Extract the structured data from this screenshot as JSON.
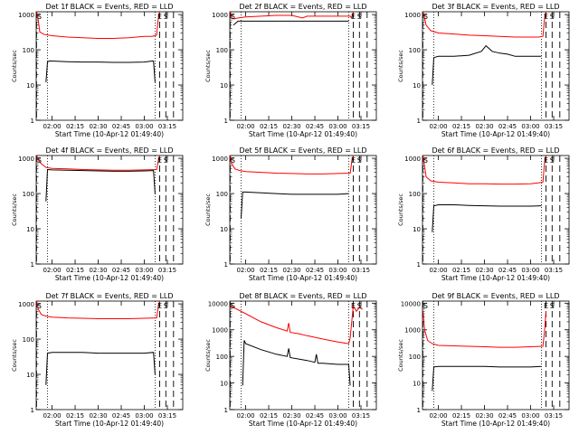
{
  "chart_data": [
    {
      "type": "line",
      "title": "Det 1f BLACK = Events, RED = LLD",
      "ylabel": "Counts/sec",
      "xlabel": "Start Time (10-Apr-12 01:49:40)",
      "xticks": [
        "02:00",
        "02:15",
        "02:30",
        "02:45",
        "03:00",
        "03:15"
      ],
      "yticks": [
        "1",
        "10",
        "100",
        "1000"
      ],
      "ylim": [
        1,
        1200
      ],
      "yscale": "log",
      "markers": [
        "S",
        "E",
        "S"
      ],
      "series": [
        {
          "color": "#ff0000",
          "x": [
            "01:50",
            "01:51",
            "01:52",
            "01:55",
            "02:00",
            "02:10",
            "02:20",
            "02:30",
            "02:40",
            "02:50",
            "03:00",
            "03:05",
            "03:08",
            "03:09",
            "03:10"
          ],
          "y": [
            1200,
            700,
            320,
            270,
            250,
            230,
            220,
            210,
            210,
            220,
            240,
            240,
            260,
            700,
            1200
          ]
        },
        {
          "color": "#000000",
          "x": [
            "01:56",
            "01:57",
            "01:58",
            "02:00",
            "02:10",
            "02:20",
            "02:30",
            "02:40",
            "02:50",
            "03:00",
            "03:05",
            "03:06",
            "03:07"
          ],
          "y": [
            12,
            45,
            48,
            48,
            46,
            45,
            45,
            44,
            44,
            45,
            48,
            48,
            12
          ]
        }
      ]
    },
    {
      "type": "line",
      "title": "Det 2f BLACK = Events, RED = LLD",
      "ylabel": "Counts/sec",
      "xlabel": "Start Time (10-Apr-12 01:49:40)",
      "xticks": [
        "02:00",
        "02:15",
        "02:30",
        "02:45",
        "03:00",
        "03:15"
      ],
      "yticks": [
        "1",
        "10",
        "100",
        "1000"
      ],
      "ylim": [
        1,
        1200
      ],
      "yscale": "log",
      "markers": [
        "S",
        "E",
        "S"
      ],
      "series": [
        {
          "color": "#ff0000",
          "x": [
            "01:50",
            "01:51",
            "01:52",
            "01:55",
            "02:00",
            "02:10",
            "02:20",
            "02:30",
            "02:37",
            "02:40",
            "02:50",
            "03:00",
            "03:08",
            "03:09",
            "03:10"
          ],
          "y": [
            1200,
            800,
            750,
            800,
            850,
            900,
            950,
            950,
            800,
            900,
            900,
            900,
            900,
            800,
            1200
          ]
        },
        {
          "color": "#000000",
          "x": [
            "01:52",
            "01:55",
            "02:00",
            "02:10",
            "02:20",
            "02:30",
            "02:40",
            "02:50",
            "03:00",
            "03:07"
          ],
          "y": [
            500,
            650,
            650,
            650,
            650,
            650,
            650,
            650,
            650,
            650
          ]
        }
      ]
    },
    {
      "type": "line",
      "title": "Det 3f BLACK = Events, RED = LLD",
      "ylabel": "Counts/sec",
      "xlabel": "Start Time (10-Apr-12 01:49:40)",
      "xticks": [
        "02:00",
        "02:15",
        "02:30",
        "02:45",
        "03:00",
        "03:15"
      ],
      "yticks": [
        "1",
        "10",
        "100",
        "1000"
      ],
      "ylim": [
        1,
        1200
      ],
      "yscale": "log",
      "markers": [
        "S",
        "E",
        "S"
      ],
      "series": [
        {
          "color": "#ff0000",
          "x": [
            "01:50",
            "01:51",
            "01:52",
            "01:55",
            "02:00",
            "02:10",
            "02:20",
            "02:30",
            "02:40",
            "02:50",
            "03:00",
            "03:05",
            "03:08",
            "03:09",
            "03:10"
          ],
          "y": [
            1200,
            800,
            500,
            350,
            300,
            280,
            260,
            250,
            240,
            230,
            230,
            230,
            240,
            700,
            1200
          ]
        },
        {
          "color": "#000000",
          "x": [
            "01:56",
            "01:57",
            "02:00",
            "02:10",
            "02:20",
            "02:28",
            "02:31",
            "02:35",
            "02:40",
            "02:45",
            "02:50",
            "03:00",
            "03:07"
          ],
          "y": [
            10,
            60,
            65,
            65,
            70,
            90,
            130,
            90,
            80,
            75,
            65,
            65,
            65
          ]
        }
      ]
    },
    {
      "type": "line",
      "title": "Det 4f BLACK = Events, RED = LLD",
      "ylabel": "Counts/sec",
      "xlabel": "Start Time (10-Apr-12 01:49:40)",
      "xticks": [
        "02:00",
        "02:15",
        "02:30",
        "02:45",
        "03:00",
        "03:15"
      ],
      "yticks": [
        "1",
        "10",
        "100",
        "1000"
      ],
      "ylim": [
        1,
        1200
      ],
      "yscale": "log",
      "markers": [
        "S",
        "E",
        "S"
      ],
      "series": [
        {
          "color": "#ff0000",
          "x": [
            "01:50",
            "01:51",
            "01:53",
            "01:56",
            "02:00",
            "02:10",
            "02:20",
            "02:30",
            "02:40",
            "02:50",
            "03:00",
            "03:08",
            "03:09",
            "03:10"
          ],
          "y": [
            1200,
            900,
            700,
            550,
            520,
            500,
            480,
            470,
            460,
            460,
            470,
            480,
            800,
            1200
          ]
        },
        {
          "color": "#000000",
          "x": [
            "01:56",
            "01:57",
            "02:00",
            "02:10",
            "02:20",
            "02:30",
            "02:40",
            "02:50",
            "03:00",
            "03:06",
            "03:07"
          ],
          "y": [
            60,
            480,
            470,
            460,
            450,
            440,
            430,
            430,
            440,
            450,
            100
          ]
        }
      ]
    },
    {
      "type": "line",
      "title": "Det 5f BLACK = Events, RED = LLD",
      "ylabel": "Counts/sec",
      "xlabel": "Start Time (10-Apr-12 01:49:40)",
      "xticks": [
        "02:00",
        "02:15",
        "02:30",
        "02:45",
        "03:00",
        "03:15"
      ],
      "yticks": [
        "1",
        "10",
        "100",
        "1000"
      ],
      "ylim": [
        1,
        1200
      ],
      "yscale": "log",
      "markers": [
        "S",
        "E",
        "S"
      ],
      "series": [
        {
          "color": "#ff0000",
          "x": [
            "01:50",
            "01:51",
            "01:53",
            "01:56",
            "02:00",
            "02:10",
            "02:20",
            "02:30",
            "02:40",
            "02:50",
            "03:00",
            "03:08",
            "03:09",
            "03:10"
          ],
          "y": [
            1200,
            700,
            500,
            450,
            420,
            400,
            380,
            370,
            360,
            360,
            370,
            380,
            800,
            1200
          ]
        },
        {
          "color": "#000000",
          "x": [
            "01:57",
            "01:58",
            "02:00",
            "02:10",
            "02:20",
            "02:30",
            "02:40",
            "02:50",
            "03:00",
            "03:07"
          ],
          "y": [
            20,
            110,
            110,
            105,
            100,
            95,
            95,
            95,
            95,
            100
          ]
        }
      ]
    },
    {
      "type": "line",
      "title": "Det 6f BLACK = Events, RED = LLD",
      "ylabel": "Counts/sec",
      "xlabel": "Start Time (10-Apr-12 01:49:40)",
      "xticks": [
        "02:00",
        "02:15",
        "02:30",
        "02:45",
        "03:00",
        "03:15"
      ],
      "yticks": [
        "1",
        "10",
        "100",
        "1000"
      ],
      "ylim": [
        1,
        1200
      ],
      "yscale": "log",
      "markers": [
        "S",
        "E",
        "S"
      ],
      "series": [
        {
          "color": "#ff0000",
          "x": [
            "01:50",
            "01:51",
            "01:52",
            "01:55",
            "02:00",
            "02:10",
            "02:20",
            "02:30",
            "02:40",
            "02:50",
            "03:00",
            "03:05",
            "03:08",
            "03:09",
            "03:10"
          ],
          "y": [
            1200,
            600,
            300,
            230,
            210,
            200,
            190,
            190,
            185,
            185,
            190,
            200,
            210,
            700,
            1200
          ]
        },
        {
          "color": "#000000",
          "x": [
            "01:56",
            "01:57",
            "02:00",
            "02:10",
            "02:20",
            "02:30",
            "02:40",
            "02:50",
            "03:00",
            "03:07"
          ],
          "y": [
            8,
            45,
            48,
            48,
            46,
            45,
            44,
            44,
            44,
            45
          ]
        }
      ]
    },
    {
      "type": "line",
      "title": "Det 7f BLACK = Events, RED = LLD",
      "ylabel": "Counts/sec",
      "xlabel": "Start Time (10-Apr-12 01:49:40)",
      "xticks": [
        "02:00",
        "02:15",
        "02:30",
        "02:45",
        "03:00",
        "03:15"
      ],
      "yticks": [
        "1",
        "10",
        "100",
        "1000"
      ],
      "ylim": [
        1,
        1200
      ],
      "yscale": "log",
      "markers": [
        "S",
        "E",
        "S"
      ],
      "series": [
        {
          "color": "#ff0000",
          "x": [
            "01:50",
            "01:51",
            "01:53",
            "01:56",
            "02:00",
            "02:10",
            "02:20",
            "02:30",
            "02:40",
            "02:50",
            "03:00",
            "03:08",
            "03:09",
            "03:10"
          ],
          "y": [
            1200,
            700,
            500,
            450,
            420,
            400,
            390,
            380,
            380,
            380,
            390,
            400,
            800,
            1200
          ]
        },
        {
          "color": "#000000",
          "x": [
            "01:56",
            "01:57",
            "02:00",
            "02:10",
            "02:20",
            "02:30",
            "02:40",
            "02:50",
            "03:00",
            "03:06",
            "03:07"
          ],
          "y": [
            5,
            40,
            42,
            42,
            42,
            40,
            40,
            40,
            40,
            42,
            10
          ]
        }
      ]
    },
    {
      "type": "line",
      "title": "Det 8f BLACK = Events, RED = LLD",
      "ylabel": "Counts/sec",
      "xlabel": "Start Time (10-Apr-12 01:49:40)",
      "xticks": [
        "02:00",
        "02:15",
        "02:30",
        "02:45",
        "03:00",
        "03:15"
      ],
      "yticks": [
        "1",
        "10",
        "100",
        "1000",
        "10000"
      ],
      "ylim": [
        1,
        12000
      ],
      "yscale": "log",
      "markers": [
        "S",
        "E",
        "S"
      ],
      "series": [
        {
          "color": "#ff0000",
          "x": [
            "01:50",
            "02:00",
            "02:10",
            "02:20",
            "02:27",
            "02:28",
            "02:29",
            "02:35",
            "02:40",
            "02:50",
            "03:00",
            "03:07",
            "03:08",
            "03:10",
            "03:12",
            "03:14",
            "03:16"
          ],
          "y": [
            8000,
            4000,
            2000,
            1200,
            900,
            1800,
            800,
            700,
            600,
            450,
            350,
            300,
            500,
            8000,
            5000,
            7000,
            6000
          ]
        },
        {
          "color": "#000000",
          "x": [
            "01:58",
            "01:59",
            "02:00",
            "02:10",
            "02:20",
            "02:27",
            "02:28",
            "02:29",
            "02:40",
            "02:45",
            "02:46",
            "02:47",
            "02:50",
            "03:00",
            "03:07",
            "03:08"
          ],
          "y": [
            8,
            400,
            300,
            180,
            120,
            100,
            200,
            90,
            70,
            60,
            120,
            55,
            55,
            50,
            50,
            8
          ]
        }
      ]
    },
    {
      "type": "line",
      "title": "Det 9f BLACK = Events, RED = LLD",
      "ylabel": "Counts/sec",
      "xlabel": "Start Time (10-Apr-12 01:49:40)",
      "xticks": [
        "02:00",
        "02:15",
        "02:30",
        "02:45",
        "03:00",
        "03:15"
      ],
      "yticks": [
        "1",
        "10",
        "100",
        "1000",
        "10000"
      ],
      "ylim": [
        1,
        12000
      ],
      "yscale": "log",
      "markers": [
        "S",
        "E",
        "S"
      ],
      "series": [
        {
          "color": "#ff0000",
          "x": [
            "01:50",
            "01:51",
            "01:53",
            "01:56",
            "02:00",
            "02:10",
            "02:20",
            "02:30",
            "02:40",
            "02:50",
            "03:00",
            "03:08",
            "03:09",
            "03:10"
          ],
          "y": [
            5000,
            1000,
            400,
            300,
            260,
            250,
            240,
            230,
            220,
            220,
            230,
            240,
            800,
            5000
          ]
        },
        {
          "color": "#000000",
          "x": [
            "01:56",
            "01:57",
            "02:00",
            "02:10",
            "02:20",
            "02:30",
            "02:40",
            "02:50",
            "03:00",
            "03:07"
          ],
          "y": [
            5,
            40,
            42,
            42,
            42,
            42,
            40,
            40,
            40,
            42
          ]
        }
      ]
    }
  ]
}
